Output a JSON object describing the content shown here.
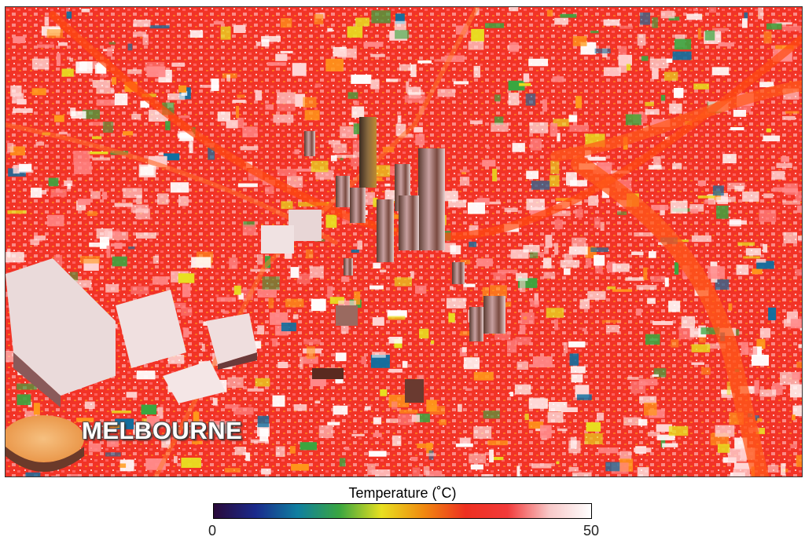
{
  "map": {
    "city_label": "MELBOURNE"
  },
  "legend": {
    "title": "Temperature (˚C)",
    "min_label": "0",
    "max_label": "50",
    "min_value": 0,
    "max_value": 50,
    "colormap": [
      "#2a0a3a",
      "#1a2a8c",
      "#0f7fa0",
      "#3aa640",
      "#e8e020",
      "#f08a10",
      "#ee3020",
      "#f23a3a",
      "#f8c8c8",
      "#ffffff"
    ]
  }
}
